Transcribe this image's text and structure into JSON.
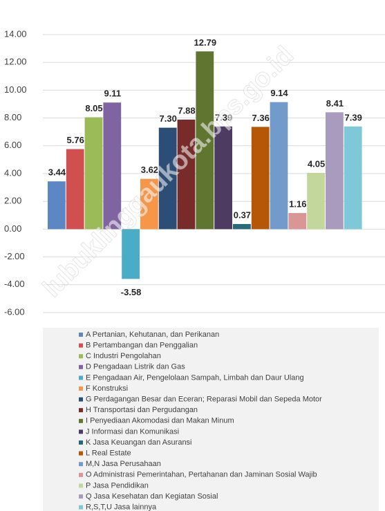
{
  "chart_data": {
    "type": "bar",
    "watermark": "lubuklinggaukota.bps.go.id",
    "categories": [
      "A Pertanian, Kehutanan, dan Perikanan",
      "B Pertambangan dan Penggalian",
      "C Industri Pengolahan",
      "D Pengadaan Listrik dan Gas",
      "E Pengadaan Air, Pengelolaan Sampah, Limbah dan Daur Ulang",
      "F Konstruksi",
      "G Perdagangan Besar dan Eceran; Reparasi Mobil dan Sepeda Motor",
      "H Transportasi dan Pergudangan",
      "I Penyediaan Akomodasi dan Makan Minum",
      "J Informasi dan Komunikasi",
      "K Jasa Keuangan dan Asuransi",
      "L Real Estate",
      "M,N Jasa Perusahaan",
      "O Administrasi Pemerintahan, Pertahanan dan Jaminan Sosial Wajib",
      "P Jasa Pendidikan",
      "Q Jasa Kesehatan dan Kegiatan Sosial",
      "R,S,T,U Jasa lainnya"
    ],
    "values": [
      3.44,
      5.76,
      8.05,
      9.11,
      -3.58,
      3.62,
      7.3,
      7.88,
      12.79,
      7.39,
      0.37,
      7.36,
      9.14,
      1.16,
      4.05,
      8.41,
      7.39
    ],
    "value_labels": [
      "3.44",
      "5.76",
      "8.05",
      "9.11",
      "-3.58",
      "3.62",
      "7.30",
      "7.88",
      "12.79",
      "7.39",
      "0.37",
      "7.36",
      "9.14",
      "1.16",
      "4.05",
      "8.41",
      "7.39"
    ],
    "colors": [
      "#5b87c5",
      "#d0504f",
      "#9bbb59",
      "#8064a2",
      "#4bacc6",
      "#f79646",
      "#2c4d75",
      "#772c2a",
      "#5f7530",
      "#4d3b62",
      "#276a7c",
      "#b65708",
      "#729aca",
      "#d99694",
      "#c3d69b",
      "#a99bbd",
      "#7fc8d8"
    ],
    "ylim": [
      -6,
      14
    ],
    "yticks": [
      {
        "value": -6,
        "label": "-6.00"
      },
      {
        "value": -4,
        "label": "-4.00"
      },
      {
        "value": -2,
        "label": "-2.00"
      },
      {
        "value": 0,
        "label": "0.00"
      },
      {
        "value": 2,
        "label": "2.00"
      },
      {
        "value": 4,
        "label": "4.00"
      },
      {
        "value": 6,
        "label": "6.00"
      },
      {
        "value": 8,
        "label": "8.00"
      },
      {
        "value": 10,
        "label": "10.00"
      },
      {
        "value": 12,
        "label": "12.00"
      },
      {
        "value": 14,
        "label": "14.00"
      }
    ],
    "grid": true,
    "legend": "bottom"
  }
}
